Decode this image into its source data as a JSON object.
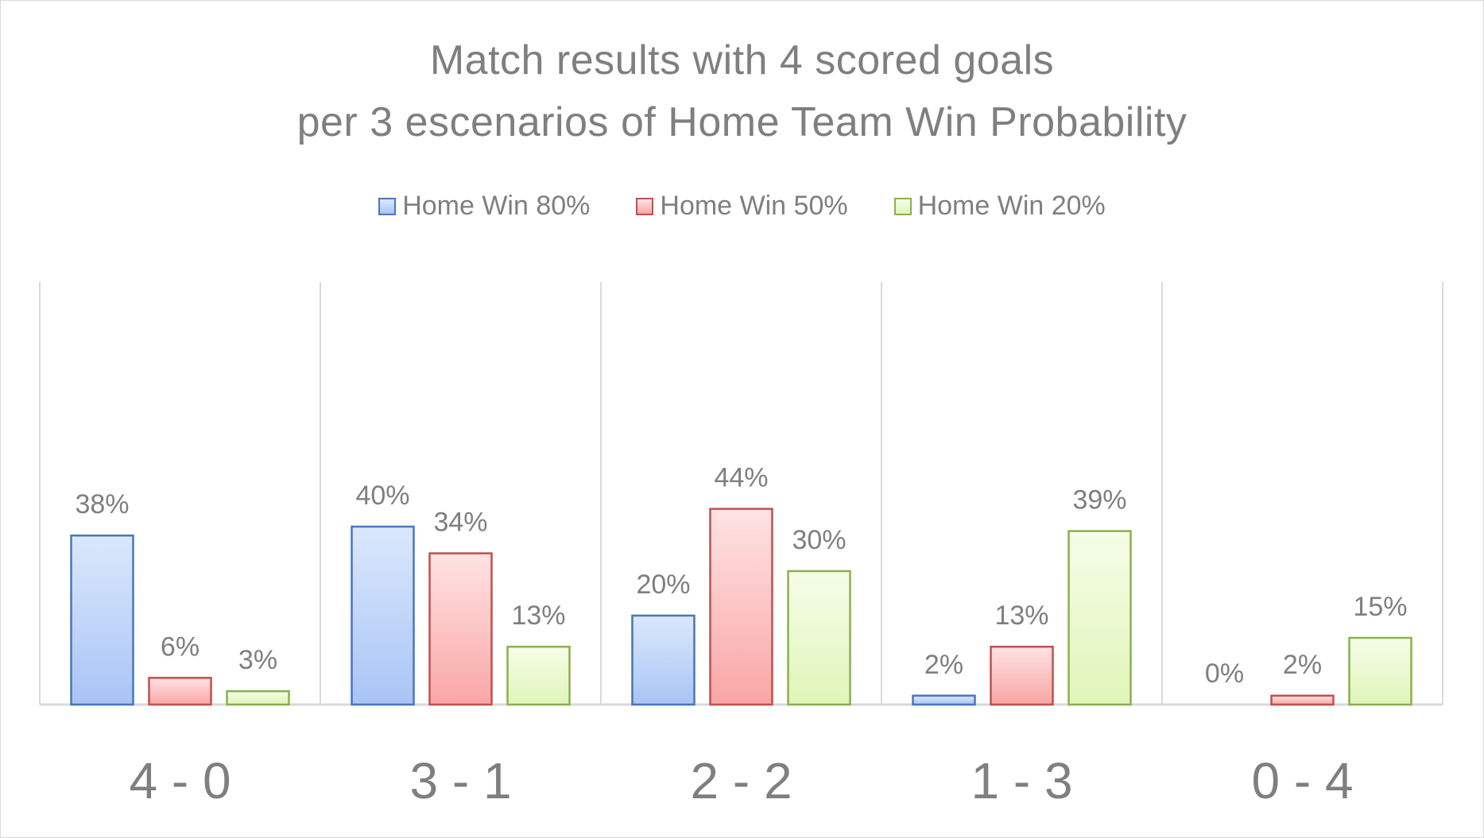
{
  "chart_data": {
    "type": "bar",
    "title_lines": [
      "Match results with 4 scored goals",
      "per 3 escenarios of Home Team Win Probability"
    ],
    "xlabel": "",
    "ylabel": "",
    "categories": [
      "4 - 0",
      "3 - 1",
      "2 - 2",
      "1 - 3",
      "0 - 4"
    ],
    "series": [
      {
        "name": "Home Win 80%",
        "values": [
          38,
          40,
          20,
          2,
          0
        ],
        "labels": [
          "38%",
          "40%",
          "20%",
          "2%",
          "0%"
        ],
        "fill_top": "#dae8fc",
        "fill_bottom": "#a9c4f5",
        "stroke": "#4a76b8"
      },
      {
        "name": "Home Win 50%",
        "values": [
          6,
          34,
          44,
          13,
          2
        ],
        "labels": [
          "6%",
          "34%",
          "44%",
          "13%",
          "2%"
        ],
        "fill_top": "#ffe3e3",
        "fill_bottom": "#f9a6a6",
        "stroke": "#c0504d"
      },
      {
        "name": "Home Win 20%",
        "values": [
          3,
          13,
          30,
          39,
          15
        ],
        "labels": [
          "3%",
          "13%",
          "30%",
          "39%",
          "15%"
        ],
        "fill_top": "#f6fde9",
        "fill_bottom": "#dff5b8",
        "stroke": "#8ab04f"
      }
    ],
    "ylim": [
      0,
      90
    ],
    "grid": "vertical category separators",
    "legend_position": "top-center",
    "axis_color": "#d9d9d9",
    "text_color": "#7f7f7f"
  }
}
